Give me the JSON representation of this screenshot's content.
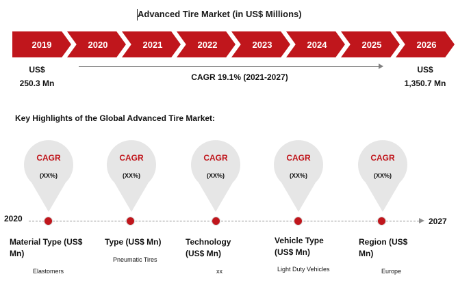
{
  "chart_data": {
    "type": "timeline",
    "title": "Advanced Tire Market (in US$ Millions)",
    "years": [
      "2019",
      "2020",
      "2021",
      "2022",
      "2023",
      "2024",
      "2025",
      "2026"
    ],
    "start_value": {
      "currency": "US$",
      "amount": "250.3 Mn"
    },
    "end_value": {
      "currency": "US$",
      "amount": "1,350.7 Mn"
    },
    "cagr_text": "CAGR 19.1% (2021-2027)",
    "highlights_title": "Key Highlights of the Global Advanced Tire Market:",
    "timeline_start": "2020",
    "timeline_end": "2027",
    "segments": [
      {
        "label": "CAGR",
        "value": "(XX%)",
        "name": "Material Type (US$ Mn)",
        "example": "Elastomers"
      },
      {
        "label": "CAGR",
        "value": "(XX%)",
        "name": "Type (US$ Mn)",
        "example": "Pneumatic Tires"
      },
      {
        "label": "CAGR",
        "value": "(XX%)",
        "name": "Technology (US$ Mn)",
        "example": "xx"
      },
      {
        "label": "CAGR",
        "value": "(XX%)",
        "name": "Vehicle Type (US$ Mn)",
        "example": "Light Duty Vehicles"
      },
      {
        "label": "CAGR",
        "value": "(XX%)",
        "name": "Region (US$ Mn)",
        "example": "Europe"
      }
    ]
  },
  "colors": {
    "accent": "#c0161c",
    "pin": "#e6e6e6",
    "line": "#8c8c8c"
  }
}
